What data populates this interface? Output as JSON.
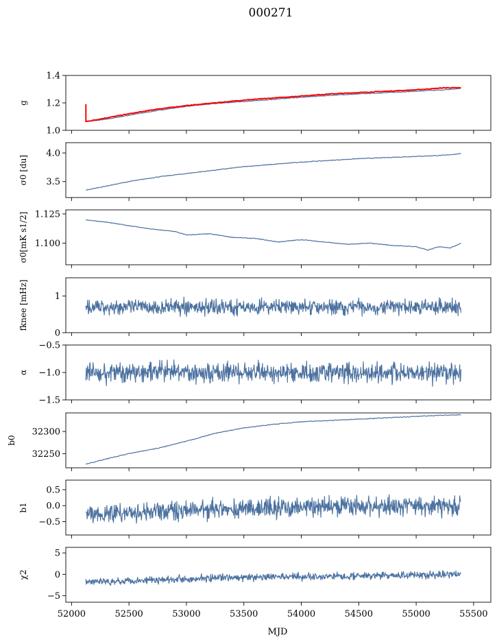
{
  "chart_data": {
    "type": "line",
    "title": "000271",
    "xlabel": "MJD",
    "xlim": [
      51950,
      55650
    ],
    "x_ticks": [
      "52000",
      "52500",
      "53000",
      "53500",
      "54000",
      "54500",
      "55000",
      "55500"
    ],
    "x_range": [
      52125,
      55390
    ],
    "grid": false,
    "panels": [
      {
        "ylabel": "g",
        "ylim": [
          1.0,
          1.4
        ],
        "yticks": [
          "1.0",
          "1.2",
          "1.4"
        ],
        "series": [
          {
            "color": "#4c72a0",
            "x": [
              52125,
              52200,
              52300,
              52500,
              52750,
              53000,
              53250,
              53500,
              53750,
              54000,
              54250,
              54500,
              54750,
              55000,
              55250,
              55390
            ],
            "y": [
              1.065,
              1.07,
              1.08,
              1.11,
              1.145,
              1.175,
              1.195,
              1.21,
              1.225,
              1.24,
              1.255,
              1.265,
              1.275,
              1.285,
              1.295,
              1.305
            ]
          },
          {
            "color": "#ff0000",
            "x": [
              52125,
              52125,
              52135,
              52200,
              52300,
              52500,
              52750,
              53000,
              53250,
              53500,
              53750,
              54000,
              54250,
              54500,
              54750,
              55000,
              55250,
              55390
            ],
            "y": [
              1.19,
              1.065,
              1.065,
              1.075,
              1.09,
              1.12,
              1.155,
              1.18,
              1.2,
              1.22,
              1.235,
              1.25,
              1.265,
              1.275,
              1.285,
              1.295,
              1.31,
              1.31
            ]
          }
        ]
      },
      {
        "ylabel": "σ0 [du]",
        "ylim": [
          3.22,
          4.18
        ],
        "yticks": [
          "3.5",
          "4.0"
        ],
        "series": [
          {
            "color": "#4c72a0",
            "x": [
              52125,
              52300,
              52500,
              52750,
              53000,
              53250,
              53500,
              53750,
              54000,
              54250,
              54500,
              54750,
              55000,
              55250,
              55390
            ],
            "y": [
              3.35,
              3.42,
              3.5,
              3.58,
              3.64,
              3.7,
              3.76,
              3.8,
              3.84,
              3.87,
              3.9,
              3.92,
              3.94,
              3.96,
              3.99
            ]
          }
        ]
      },
      {
        "ylabel": "σ0[mK s1/2]",
        "ylim": [
          1.0815,
          1.1285
        ],
        "yticks": [
          "1.100",
          "1.125"
        ],
        "series": [
          {
            "color": "#4c72a0",
            "x": [
              52125,
              52300,
              52500,
              52700,
              52900,
              53000,
              53200,
              53400,
              53600,
              53800,
              54000,
              54200,
              54400,
              54600,
              54800,
              55000,
              55100,
              55200,
              55300,
              55390
            ],
            "y": [
              1.12,
              1.118,
              1.115,
              1.112,
              1.11,
              1.107,
              1.108,
              1.105,
              1.104,
              1.101,
              1.103,
              1.101,
              1.099,
              1.1,
              1.098,
              1.097,
              1.094,
              1.097,
              1.096,
              1.1
            ]
          }
        ]
      },
      {
        "ylabel": "fknee [mHz]",
        "ylim": [
          0,
          1.5
        ],
        "yticks": [
          "0",
          "1"
        ],
        "series": [
          {
            "color": "#4c72a0",
            "noisy": true,
            "x": [
              52125,
              53000,
              54000,
              55000,
              55390
            ],
            "y": [
              0.7,
              0.7,
              0.7,
              0.7,
              0.7
            ],
            "noise_amplitude": 0.3
          }
        ]
      },
      {
        "ylabel": "α",
        "ylim": [
          -1.5,
          -0.5
        ],
        "yticks": [
          "-1.5",
          "-1.0",
          "-0.5"
        ],
        "series": [
          {
            "color": "#4c72a0",
            "noisy": true,
            "x": [
              52125,
              53000,
              54000,
              55000,
              55390
            ],
            "y": [
              -1.0,
              -1.0,
              -1.0,
              -1.0,
              -1.0
            ],
            "noise_amplitude": 0.28
          }
        ]
      },
      {
        "ylabel": "b0",
        "ylim": [
          32218,
          32342
        ],
        "yticks": [
          "32250",
          "32300"
        ],
        "series": [
          {
            "color": "#4c72a0",
            "x": [
              52125,
              52300,
              52500,
              52750,
              53000,
              53250,
              53500,
              53750,
              54000,
              54250,
              54500,
              54750,
              55000,
              55250,
              55390
            ],
            "y": [
              32226,
              32238,
              32250,
              32262,
              32278,
              32296,
              32308,
              32316,
              32322,
              32325,
              32328,
              32331,
              32334,
              32337,
              32338
            ]
          }
        ]
      },
      {
        "ylabel": "b1",
        "ylim": [
          -0.92,
          0.8
        ],
        "yticks": [
          "-0.5",
          "0.0",
          "0.5"
        ],
        "series": [
          {
            "color": "#4c72a0",
            "noisy": true,
            "x": [
              52125,
              53000,
              54000,
              55000,
              55390
            ],
            "y": [
              -0.25,
              -0.15,
              -0.05,
              0.0,
              0.0
            ],
            "noise_amplitude": 0.45
          }
        ]
      },
      {
        "ylabel": "χ2",
        "ylim": [
          -6.5,
          6.3
        ],
        "yticks": [
          "-5",
          "0",
          "5"
        ],
        "series": [
          {
            "color": "#4c72a0",
            "noisy": true,
            "x": [
              52125,
              53000,
              54000,
              55000,
              55390
            ],
            "y": [
              -1.8,
              -1.0,
              -0.5,
              -0.2,
              0.0
            ],
            "noise_amplitude": 1.3
          }
        ]
      }
    ]
  }
}
